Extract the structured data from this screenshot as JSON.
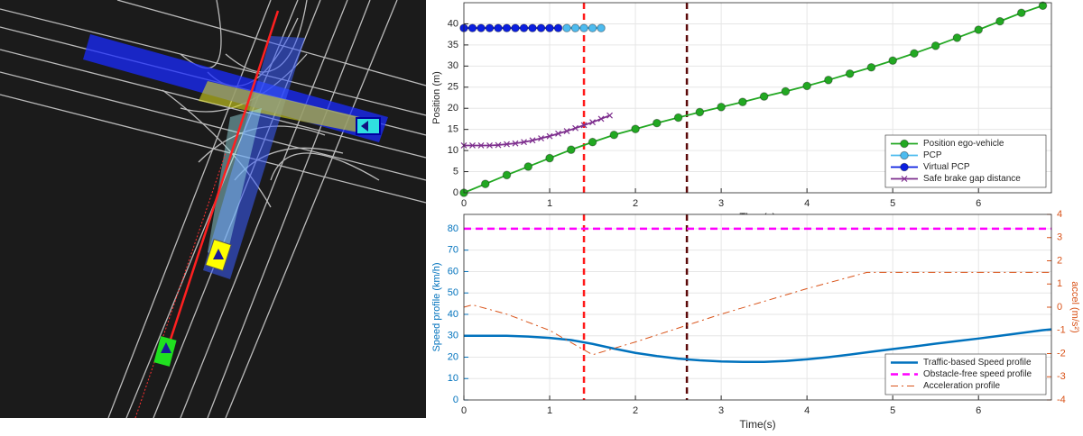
{
  "chart_data": [
    {
      "type": "line",
      "xlabel": "Time(s)",
      "ylabel": "Position (m)",
      "xlim": [
        0,
        6.85
      ],
      "ylim": [
        0,
        45
      ],
      "xticks": [
        0,
        1,
        2,
        3,
        4,
        5,
        6
      ],
      "yticks": [
        0,
        5,
        10,
        15,
        20,
        25,
        30,
        35,
        40
      ],
      "grid": true,
      "legend": "lower right",
      "vlines": [
        {
          "x": 1.4,
          "color": "#ff1a1a"
        },
        {
          "x": 2.6,
          "color": "#5c0a0a"
        }
      ],
      "series": [
        {
          "name": "Position ego-vehicle",
          "color": "#22a822",
          "marker": "o",
          "line": true,
          "x": [
            0,
            0.25,
            0.5,
            0.75,
            1,
            1.25,
            1.5,
            1.75,
            2,
            2.25,
            2.5,
            2.75,
            3,
            3.25,
            3.5,
            3.75,
            4,
            4.25,
            4.5,
            4.75,
            5,
            5.25,
            5.5,
            5.75,
            6,
            6.25,
            6.5,
            6.75
          ],
          "values": [
            0,
            2.1,
            4.2,
            6.2,
            8.2,
            10.2,
            12.0,
            13.7,
            15.1,
            16.5,
            17.8,
            19.1,
            20.3,
            21.5,
            22.8,
            24.0,
            25.3,
            26.7,
            28.2,
            29.7,
            31.3,
            33.0,
            34.8,
            36.7,
            38.6,
            40.6,
            42.6,
            44.3
          ]
        },
        {
          "name": "PCP",
          "color": "#4dbbef",
          "marker": "o",
          "line": true,
          "x": [
            1.2,
            1.3,
            1.4,
            1.5,
            1.6
          ],
          "values": [
            39,
            39,
            39,
            39,
            39
          ]
        },
        {
          "name": "Virtual PCP",
          "color": "#0a1ee0",
          "marker": "o",
          "line": true,
          "x": [
            0,
            0.1,
            0.2,
            0.3,
            0.4,
            0.5,
            0.6,
            0.7,
            0.8,
            0.9,
            1.0,
            1.1
          ],
          "values": [
            39,
            39,
            39,
            39,
            39,
            39,
            39,
            39,
            39,
            39,
            39,
            39
          ]
        },
        {
          "name": "Safe brake gap distance",
          "color": "#7e2f8e",
          "marker": "x",
          "line": true,
          "x": [
            0,
            0.1,
            0.2,
            0.3,
            0.4,
            0.5,
            0.6,
            0.7,
            0.8,
            0.9,
            1.0,
            1.1,
            1.2,
            1.3,
            1.4,
            1.5,
            1.6,
            1.7
          ],
          "values": [
            11.2,
            11.2,
            11.2,
            11.2,
            11.3,
            11.5,
            11.7,
            12.0,
            12.4,
            12.9,
            13.4,
            14.0,
            14.6,
            15.3,
            16.0,
            16.7,
            17.5,
            18.3
          ]
        }
      ]
    },
    {
      "type": "line",
      "xlabel": "Time(s)",
      "ylabel": "Speed profile (km/h)",
      "y2label": "accel (m/s²)",
      "xlim": [
        0,
        6.85
      ],
      "ylim": [
        0,
        86.7
      ],
      "y2lim": [
        -4,
        4
      ],
      "xticks": [
        0,
        1,
        2,
        3,
        4,
        5,
        6
      ],
      "yticks": [
        0,
        10,
        20,
        30,
        40,
        50,
        60,
        70,
        80
      ],
      "y2ticks": [
        -4,
        -3,
        -2,
        -1,
        0,
        1,
        2,
        3,
        4
      ],
      "ycolor": "#0072bd",
      "y2color": "#d95319",
      "grid": true,
      "legend": "lower right",
      "vlines": [
        {
          "x": 1.4,
          "color": "#ff1a1a"
        },
        {
          "x": 2.6,
          "color": "#5c0a0a"
        }
      ],
      "series": [
        {
          "name": "Traffic-based Speed profile",
          "color": "#0072bd",
          "width": 2.5,
          "line": true,
          "x": [
            0,
            0.25,
            0.5,
            0.75,
            1,
            1.25,
            1.5,
            1.75,
            2,
            2.25,
            2.5,
            2.75,
            3,
            3.25,
            3.5,
            3.75,
            4,
            4.25,
            4.5,
            4.75,
            5,
            5.25,
            5.5,
            5.75,
            6,
            6.25,
            6.5,
            6.75,
            6.85
          ],
          "values": [
            30,
            30,
            30,
            29.6,
            29,
            28,
            26.2,
            24,
            22,
            20.5,
            19.3,
            18.5,
            18,
            17.8,
            17.8,
            18.2,
            19,
            20,
            21.2,
            22.5,
            23.8,
            25,
            26.3,
            27.5,
            28.7,
            30,
            31.3,
            32.6,
            33
          ]
        },
        {
          "name": "Obstacle-free speed profile",
          "color": "#ff00ff",
          "width": 2.5,
          "dash": "--",
          "line": true,
          "x": [
            0,
            6.85
          ],
          "values": [
            80,
            80
          ]
        },
        {
          "name": "Acceleration profile",
          "color": "#d95319",
          "width": 1,
          "dash": "-.",
          "line": true,
          "axis": "y2",
          "x": [
            0,
            0.1,
            0.5,
            1,
            1.5,
            2,
            3,
            4,
            4.7,
            5,
            6.85
          ],
          "values": [
            0,
            0.1,
            -0.3,
            -1.0,
            -2.05,
            -1.5,
            -0.3,
            0.8,
            1.5,
            1.5,
            1.5
          ]
        }
      ]
    }
  ]
}
